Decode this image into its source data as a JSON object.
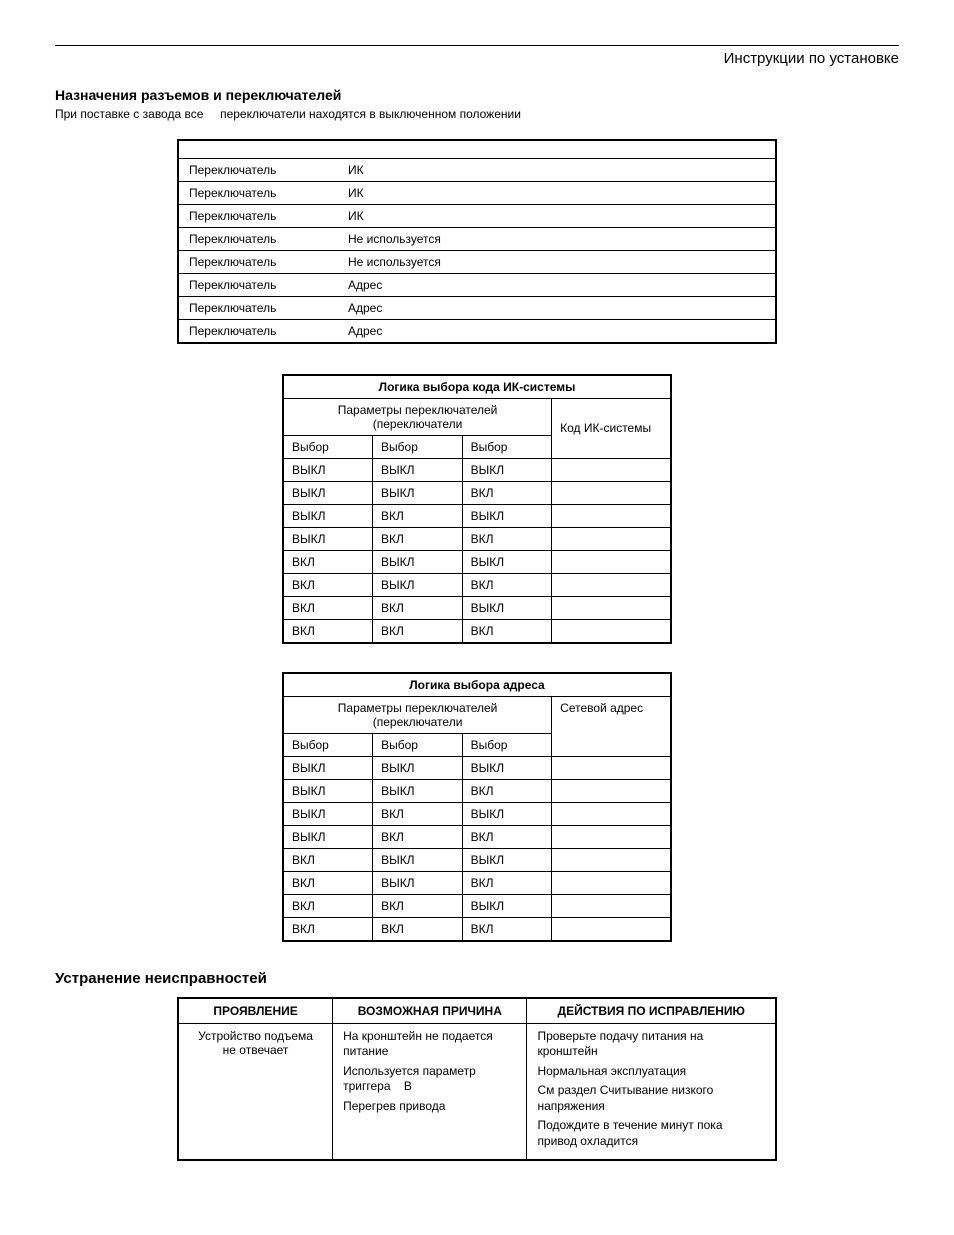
{
  "header": {
    "right": "Инструкции по установке"
  },
  "sec1": {
    "title": "Назначения разъемов и переключателей",
    "lead_a": "При поставке с завода все",
    "lead_b": "переключатели находятся в выключенном положении"
  },
  "t1": {
    "rows": [
      {
        "a": "Переключатель",
        "b": "ИК"
      },
      {
        "a": "Переключатель",
        "b": "ИК"
      },
      {
        "a": "Переключатель",
        "b": "ИК"
      },
      {
        "a": "Переключатель",
        "b": "Не используется"
      },
      {
        "a": "Переключатель",
        "b": "Не используется"
      },
      {
        "a": "Переключатель",
        "b": "Адрес"
      },
      {
        "a": "Переключатель",
        "b": "Адрес"
      },
      {
        "a": "Переключатель",
        "b": "Адрес"
      }
    ]
  },
  "t2": {
    "title": "Логика выбора кода ИК-системы",
    "span": "Параметры переключателей (переключатели",
    "h1": "Выбор",
    "h2": "Выбор",
    "h3": "Выбор",
    "h4": "Код ИК-системы",
    "rows": [
      [
        "ВЫКЛ",
        "ВЫКЛ",
        "ВЫКЛ",
        ""
      ],
      [
        "ВЫКЛ",
        "ВЫКЛ",
        "ВКЛ",
        ""
      ],
      [
        "ВЫКЛ",
        "ВКЛ",
        "ВЫКЛ",
        ""
      ],
      [
        "ВЫКЛ",
        "ВКЛ",
        "ВКЛ",
        ""
      ],
      [
        "ВКЛ",
        "ВЫКЛ",
        "ВЫКЛ",
        ""
      ],
      [
        "ВКЛ",
        "ВЫКЛ",
        "ВКЛ",
        ""
      ],
      [
        "ВКЛ",
        "ВКЛ",
        "ВЫКЛ",
        ""
      ],
      [
        "ВКЛ",
        "ВКЛ",
        "ВКЛ",
        ""
      ]
    ]
  },
  "t3": {
    "title": "Логика выбора адреса",
    "span": "Параметры переключателей (переключатели",
    "h1": "Выбор",
    "h2": "Выбор",
    "h3": "Выбор",
    "h4": "Сетевой адрес",
    "rows": [
      [
        "ВЫКЛ",
        "ВЫКЛ",
        "ВЫКЛ",
        ""
      ],
      [
        "ВЫКЛ",
        "ВЫКЛ",
        "ВКЛ",
        ""
      ],
      [
        "ВЫКЛ",
        "ВКЛ",
        "ВЫКЛ",
        ""
      ],
      [
        "ВЫКЛ",
        "ВКЛ",
        "ВКЛ",
        ""
      ],
      [
        "ВКЛ",
        "ВЫКЛ",
        "ВЫКЛ",
        ""
      ],
      [
        "ВКЛ",
        "ВЫКЛ",
        "ВКЛ",
        ""
      ],
      [
        "ВКЛ",
        "ВКЛ",
        "ВЫКЛ",
        ""
      ],
      [
        "ВКЛ",
        "ВКЛ",
        "ВКЛ",
        ""
      ]
    ]
  },
  "sec2": {
    "title": "Устранение неисправностей"
  },
  "t4": {
    "h1": "ПРОЯВЛЕНИЕ",
    "h2": "ВОЗМОЖНАЯ ПРИЧИНА",
    "h3": "ДЕЙСТВИЯ ПО ИСПРАВЛЕНИЮ",
    "r1c1a": "Устройство подъема",
    "r1c1b": "не отвечает",
    "r1c2a": "На кронштейн не подается питание",
    "r1c2b": "Используется параметр триггера    В",
    "r1c2c": "Перегрев привода",
    "r1c3a": "Проверьте подачу питания на кронштейн",
    "r1c3b": "Нормальная эксплуатация",
    "r1c3c": "См  раздел   Считывание низкого напряжения",
    "r1c3d": "Подождите в течение           минут пока привод охладится"
  }
}
